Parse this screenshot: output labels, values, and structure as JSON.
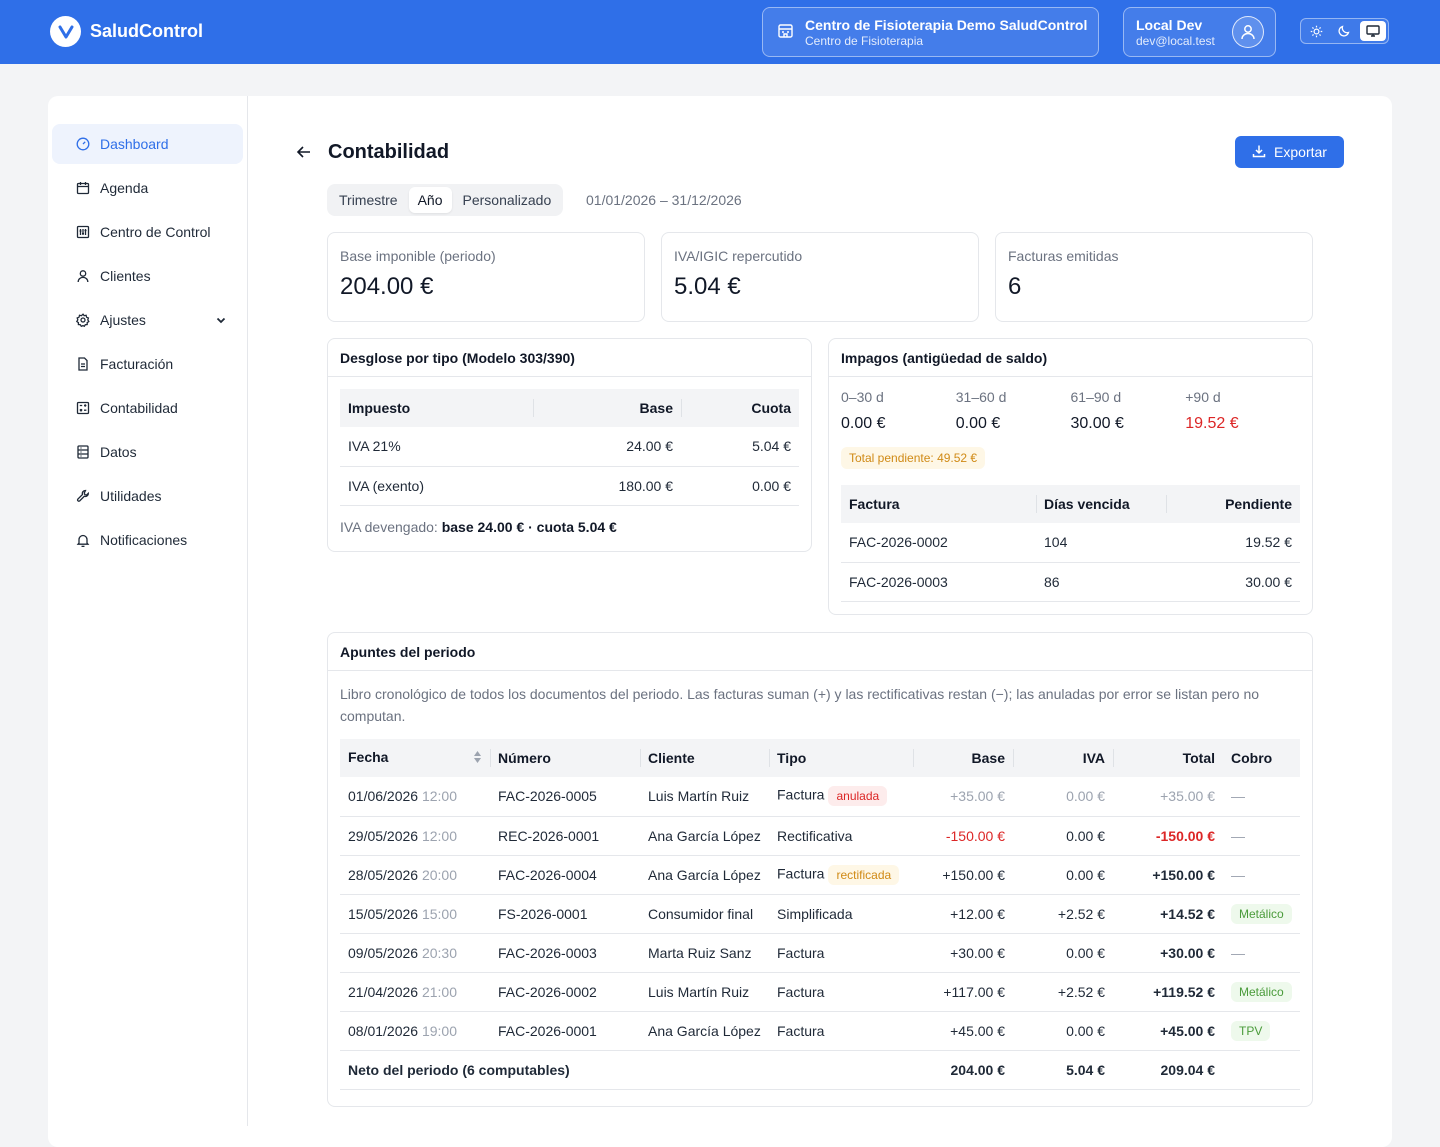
{
  "app": {
    "name": "SaludControl"
  },
  "clinic": {
    "name": "Centro de Fisioterapia Demo SaludControl",
    "type": "Centro de Fisioterapia"
  },
  "user": {
    "name": "Local Dev",
    "email": "dev@local.test"
  },
  "sidebar": {
    "items": [
      {
        "label": "Dashboard",
        "icon": "dashboard-icon",
        "active": true
      },
      {
        "label": "Agenda",
        "icon": "calendar-icon"
      },
      {
        "label": "Centro de Control",
        "icon": "control-center-icon"
      },
      {
        "label": "Clientes",
        "icon": "user-icon"
      },
      {
        "label": "Ajustes",
        "icon": "gear-icon",
        "has_children": true
      },
      {
        "label": "Facturación",
        "icon": "document-icon"
      },
      {
        "label": "Contabilidad",
        "icon": "calculator-icon"
      },
      {
        "label": "Datos",
        "icon": "database-icon"
      },
      {
        "label": "Utilidades",
        "icon": "wrench-icon"
      },
      {
        "label": "Notificaciones",
        "icon": "bell-icon"
      }
    ]
  },
  "page": {
    "title": "Contabilidad",
    "export_label": "Exportar"
  },
  "period": {
    "options": [
      "Trimestre",
      "Año",
      "Personalizado"
    ],
    "selected": "Año",
    "range": "01/01/2026 – 31/12/2026"
  },
  "kpis": [
    {
      "label": "Base imponible (periodo)",
      "value": "204.00 €"
    },
    {
      "label": "IVA/IGIC repercutido",
      "value": "5.04 €"
    },
    {
      "label": "Facturas emitidas",
      "value": "6"
    }
  ],
  "tax_breakdown": {
    "title": "Desglose por tipo (Modelo 303/390)",
    "headers": [
      "Impuesto",
      "Base",
      "Cuota"
    ],
    "rows": [
      [
        "IVA 21%",
        "24.00 €",
        "5.04 €"
      ],
      [
        "IVA (exento)",
        "180.00 €",
        "0.00 €"
      ]
    ],
    "footer_label": "IVA devengado:",
    "footer_value": "base 24.00 € · cuota 5.04 €"
  },
  "aging": {
    "title": "Impagos (antigüedad de saldo)",
    "buckets": [
      {
        "label": "0–30 d",
        "value": "0.00 €"
      },
      {
        "label": "31–60 d",
        "value": "0.00 €"
      },
      {
        "label": "61–90 d",
        "value": "30.00 €"
      },
      {
        "label": "+90 d",
        "value": "19.52 €"
      }
    ],
    "total_pending": "Total pendiente: 49.52 €",
    "headers": [
      "Factura",
      "Días vencida",
      "Pendiente"
    ],
    "rows": [
      [
        "FAC-2026-0002",
        "104",
        "19.52 €"
      ],
      [
        "FAC-2026-0003",
        "86",
        "30.00 €"
      ]
    ]
  },
  "ledger": {
    "title": "Apuntes del periodo",
    "description": "Libro cronológico de todos los documentos del periodo. Las facturas suman (+) y las rectificativas restan (−); las anuladas por error se listan pero no computan.",
    "headers": [
      "Fecha",
      "Número",
      "Cliente",
      "Tipo",
      "Base",
      "IVA",
      "Total",
      "Cobro"
    ],
    "rows": [
      {
        "date": "01/06/2026",
        "time": "12:00",
        "number": "FAC-2026-0005",
        "client": "Luis Martín Ruiz",
        "type": "Factura",
        "badge": "anulada",
        "badge_style": "red",
        "base": "+35.00 €",
        "iva": "0.00 €",
        "total": "+35.00 €",
        "cobro": "—",
        "state": "void"
      },
      {
        "date": "29/05/2026",
        "time": "12:00",
        "number": "REC-2026-0001",
        "client": "Ana García López",
        "type": "Rectificativa",
        "badge": "",
        "badge_style": "",
        "base": "-150.00 €",
        "iva": "0.00 €",
        "total": "-150.00 €",
        "cobro": "—",
        "state": "negative"
      },
      {
        "date": "28/05/2026",
        "time": "20:00",
        "number": "FAC-2026-0004",
        "client": "Ana García López",
        "type": "Factura",
        "badge": "rectificada",
        "badge_style": "amber",
        "base": "+150.00 €",
        "iva": "0.00 €",
        "total": "+150.00 €",
        "cobro": "—",
        "state": "normal"
      },
      {
        "date": "15/05/2026",
        "time": "15:00",
        "number": "FS-2026-0001",
        "client": "Consumidor final",
        "type": "Simplificada",
        "badge": "",
        "badge_style": "",
        "base": "+12.00 €",
        "iva": "+2.52 €",
        "total": "+14.52 €",
        "cobro": "Metálico",
        "state": "normal"
      },
      {
        "date": "09/05/2026",
        "time": "20:30",
        "number": "FAC-2026-0003",
        "client": "Marta Ruiz Sanz",
        "type": "Factura",
        "badge": "",
        "badge_style": "",
        "base": "+30.00 €",
        "iva": "0.00 €",
        "total": "+30.00 €",
        "cobro": "—",
        "state": "normal"
      },
      {
        "date": "21/04/2026",
        "time": "21:00",
        "number": "FAC-2026-0002",
        "client": "Luis Martín Ruiz",
        "type": "Factura",
        "badge": "",
        "badge_style": "",
        "base": "+117.00 €",
        "iva": "+2.52 €",
        "total": "+119.52 €",
        "cobro": "Metálico",
        "state": "normal"
      },
      {
        "date": "08/01/2026",
        "time": "19:00",
        "number": "FAC-2026-0001",
        "client": "Ana García López",
        "type": "Factura",
        "badge": "",
        "badge_style": "",
        "base": "+45.00 €",
        "iva": "0.00 €",
        "total": "+45.00 €",
        "cobro": "TPV",
        "state": "normal"
      }
    ],
    "footer": {
      "label": "Neto del periodo (6 computables)",
      "base": "204.00 €",
      "iva": "5.04 €",
      "total": "209.04 €"
    }
  }
}
